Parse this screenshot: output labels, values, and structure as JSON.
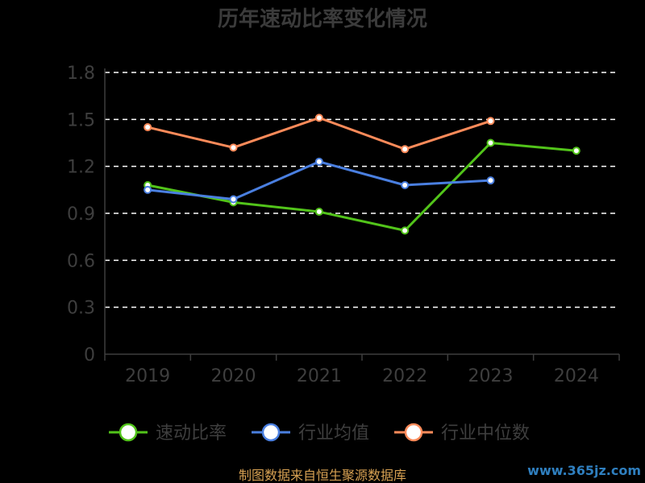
{
  "chart_data": {
    "type": "line",
    "title": "历年速动比率变化情况",
    "categories": [
      "2019",
      "2020",
      "2021",
      "2022",
      "2023",
      "2024"
    ],
    "y_ticks": [
      "0",
      "0.3",
      "0.6",
      "0.9",
      "1.2",
      "1.5",
      "1.8"
    ],
    "ylim": [
      0,
      1.8
    ],
    "grid": true,
    "legend_position": "bottom",
    "series": [
      {
        "name": "速动比率",
        "color": "#52c41a",
        "values": [
          1.08,
          0.97,
          0.91,
          0.79,
          1.35,
          1.3
        ]
      },
      {
        "name": "行业均值",
        "color": "#4a7fe0",
        "values": [
          1.05,
          0.99,
          1.23,
          1.08,
          1.11,
          null
        ]
      },
      {
        "name": "行业中位数",
        "color": "#ff8b5a",
        "values": [
          1.45,
          1.32,
          1.51,
          1.31,
          1.49,
          null
        ]
      }
    ]
  },
  "footer": "制图数据来自恒生聚源数据库",
  "watermark": "www.365jz.com"
}
